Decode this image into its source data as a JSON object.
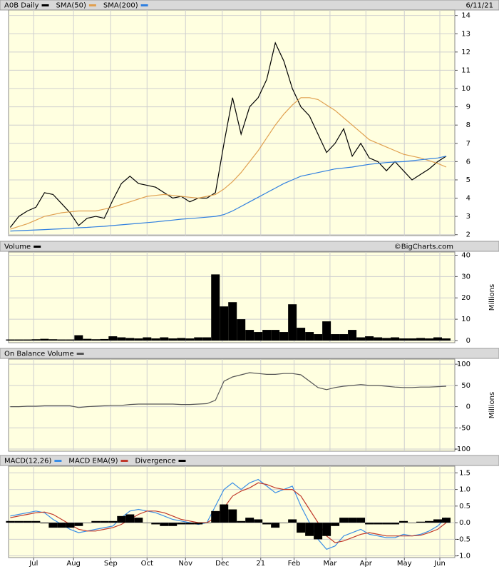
{
  "chart_data": [
    {
      "type": "line",
      "date": "6/11/21",
      "ylim": [
        1.95,
        14.3
      ],
      "yticks": [
        2,
        3,
        4,
        5,
        6,
        7,
        8,
        9,
        10,
        11,
        12,
        13,
        14
      ],
      "grid": true,
      "series": [
        {
          "name": "A0B Daily",
          "color": "#000000",
          "values": [
            2.4,
            3.0,
            3.3,
            3.5,
            4.3,
            4.2,
            3.7,
            3.2,
            2.5,
            2.9,
            3.0,
            2.9,
            3.9,
            4.8,
            5.2,
            4.8,
            4.7,
            4.6,
            4.3,
            4.0,
            4.1,
            3.8,
            4.0,
            4.0,
            4.3,
            7.0,
            9.5,
            7.5,
            9.0,
            9.5,
            10.5,
            12.5,
            11.5,
            10.0,
            9.0,
            8.5,
            7.5,
            6.5,
            7.0,
            7.8,
            6.3,
            7.0,
            6.2,
            6.0,
            5.5,
            6.0,
            5.5,
            5.0,
            5.3,
            5.6,
            6.0,
            6.3
          ]
        },
        {
          "name": "SMA(50)",
          "color": "#e0a050",
          "values": [
            2.3,
            2.45,
            2.6,
            2.8,
            3.0,
            3.1,
            3.2,
            3.25,
            3.3,
            3.3,
            3.3,
            3.4,
            3.5,
            3.65,
            3.8,
            3.95,
            4.1,
            4.15,
            4.2,
            4.15,
            4.1,
            4.05,
            4.0,
            4.1,
            4.2,
            4.5,
            4.9,
            5.4,
            6.0,
            6.6,
            7.3,
            8.0,
            8.6,
            9.1,
            9.5,
            9.5,
            9.4,
            9.1,
            8.8,
            8.4,
            8.0,
            7.6,
            7.2,
            7.0,
            6.8,
            6.6,
            6.4,
            6.3,
            6.2,
            6.05,
            5.9,
            5.7
          ]
        },
        {
          "name": "SMA(200)",
          "color": "#2f7fe0",
          "values": [
            2.2,
            2.22,
            2.24,
            2.26,
            2.28,
            2.3,
            2.32,
            2.35,
            2.38,
            2.4,
            2.43,
            2.46,
            2.5,
            2.54,
            2.58,
            2.62,
            2.66,
            2.7,
            2.75,
            2.8,
            2.85,
            2.88,
            2.92,
            2.96,
            3.0,
            3.1,
            3.3,
            3.55,
            3.8,
            4.05,
            4.3,
            4.55,
            4.8,
            5.0,
            5.2,
            5.3,
            5.4,
            5.5,
            5.6,
            5.65,
            5.7,
            5.78,
            5.85,
            5.9,
            5.95,
            5.98,
            6.0,
            6.05,
            6.1,
            6.15,
            6.2,
            6.3
          ]
        }
      ]
    },
    {
      "type": "bar",
      "annotation": "©BigCharts.com",
      "y_label": "Millions",
      "ylim": [
        -1,
        41.5
      ],
      "yticks": [
        0,
        10,
        20,
        30,
        40
      ],
      "grid": true,
      "series": [
        {
          "name": "Volume",
          "color": "#000000",
          "values": [
            0.5,
            0.5,
            0.5,
            0.6,
            0.8,
            0.6,
            0.5,
            0.5,
            2.5,
            0.8,
            0.6,
            0.7,
            2,
            1.5,
            1.2,
            1,
            1.5,
            1,
            1.5,
            1,
            1.2,
            1,
            1.5,
            1.5,
            31,
            16,
            18,
            10,
            5,
            4,
            5,
            5,
            4,
            17,
            6,
            4,
            3,
            9,
            3,
            3,
            5,
            1.5,
            2,
            1.5,
            1.2,
            1.5,
            1,
            1,
            1.2,
            1,
            1.5,
            1
          ]
        }
      ]
    },
    {
      "type": "line",
      "y_label": "Millions",
      "ylim": [
        -105,
        112
      ],
      "yticks": [
        -100,
        -50,
        0,
        50,
        100
      ],
      "grid": true,
      "series": [
        {
          "name": "On Balance Volume",
          "color": "#555555",
          "values": [
            0,
            0,
            1,
            1,
            2,
            2,
            2,
            2,
            -2,
            0,
            1,
            2,
            3,
            3,
            5,
            6,
            6,
            6,
            6,
            6,
            5,
            5,
            6,
            7,
            15,
            60,
            70,
            75,
            80,
            78,
            76,
            76,
            78,
            78,
            75,
            60,
            45,
            40,
            45,
            48,
            50,
            52,
            50,
            50,
            48,
            46,
            45,
            45,
            46,
            46,
            47,
            48
          ]
        }
      ]
    },
    {
      "type": "line",
      "ylim": [
        -1.05,
        1.7
      ],
      "yticks": [
        {
          "value": -1,
          "label": "-1.0"
        },
        -0.5,
        {
          "value": 0,
          "label": "0.0"
        },
        0.5,
        {
          "value": 1,
          "label": "1.0"
        },
        1.5
      ],
      "grid": true,
      "xlim": [
        -0.2,
        52
      ],
      "xticks": [
        {
          "value": 2.75,
          "label": "Jul"
        },
        {
          "value": 7.4,
          "label": "Aug"
        },
        {
          "value": 11.75,
          "label": "Sep"
        },
        {
          "value": 16,
          "label": "Oct"
        },
        {
          "value": 20.5,
          "label": "Nov"
        },
        {
          "value": 24.8,
          "label": "Dec"
        },
        {
          "value": 29.3,
          "label": "21"
        },
        {
          "value": 33.2,
          "label": "Feb"
        },
        {
          "value": 37.4,
          "label": "Mar"
        },
        {
          "value": 41.6,
          "label": "Apr"
        },
        {
          "value": 46.1,
          "label": "May"
        },
        {
          "value": 50.25,
          "label": "Jun"
        }
      ],
      "series": [
        {
          "name": "MACD(12,26)",
          "color": "#3a8ee6",
          "values": [
            0.2,
            0.25,
            0.3,
            0.35,
            0.3,
            0.1,
            -0.05,
            -0.2,
            -0.3,
            -0.25,
            -0.2,
            -0.15,
            -0.1,
            0.15,
            0.35,
            0.4,
            0.35,
            0.3,
            0.2,
            0.1,
            0.05,
            0.0,
            -0.05,
            0.0,
            0.5,
            1.0,
            1.2,
            1.0,
            1.2,
            1.3,
            1.1,
            0.9,
            1.0,
            1.1,
            0.5,
            0.0,
            -0.5,
            -0.8,
            -0.7,
            -0.4,
            -0.3,
            -0.2,
            -0.35,
            -0.4,
            -0.45,
            -0.45,
            -0.35,
            -0.4,
            -0.35,
            -0.25,
            -0.1,
            0.15
          ]
        },
        {
          "name": "MACD EMA(9)",
          "color": "#c0392b",
          "values": [
            0.15,
            0.2,
            0.25,
            0.3,
            0.32,
            0.25,
            0.1,
            -0.05,
            -0.2,
            -0.25,
            -0.25,
            -0.2,
            -0.15,
            -0.05,
            0.1,
            0.25,
            0.35,
            0.35,
            0.3,
            0.2,
            0.1,
            0.05,
            0.0,
            0.0,
            0.15,
            0.45,
            0.8,
            0.95,
            1.05,
            1.2,
            1.15,
            1.05,
            1.0,
            1.0,
            0.8,
            0.4,
            0.0,
            -0.4,
            -0.6,
            -0.55,
            -0.45,
            -0.35,
            -0.3,
            -0.35,
            -0.4,
            -0.4,
            -0.4,
            -0.4,
            -0.38,
            -0.3,
            -0.2,
            0.0
          ]
        },
        {
          "name": "Divergence",
          "color": "#000000",
          "type": "bar",
          "values": [
            0.05,
            0.05,
            0.05,
            0.05,
            -0.02,
            -0.15,
            -0.15,
            -0.15,
            -0.1,
            0,
            0.05,
            0.05,
            0.05,
            0.2,
            0.25,
            0.15,
            0,
            -0.05,
            -0.1,
            -0.1,
            -0.05,
            -0.05,
            -0.05,
            0,
            0.35,
            0.55,
            0.4,
            0.05,
            0.15,
            0.1,
            -0.05,
            -0.15,
            0,
            0.1,
            -0.3,
            -0.4,
            -0.5,
            -0.4,
            -0.1,
            0.15,
            0.15,
            0.15,
            -0.05,
            -0.05,
            -0.05,
            -0.05,
            0.05,
            0,
            0.03,
            0.05,
            0.1,
            0.15
          ]
        }
      ]
    }
  ]
}
